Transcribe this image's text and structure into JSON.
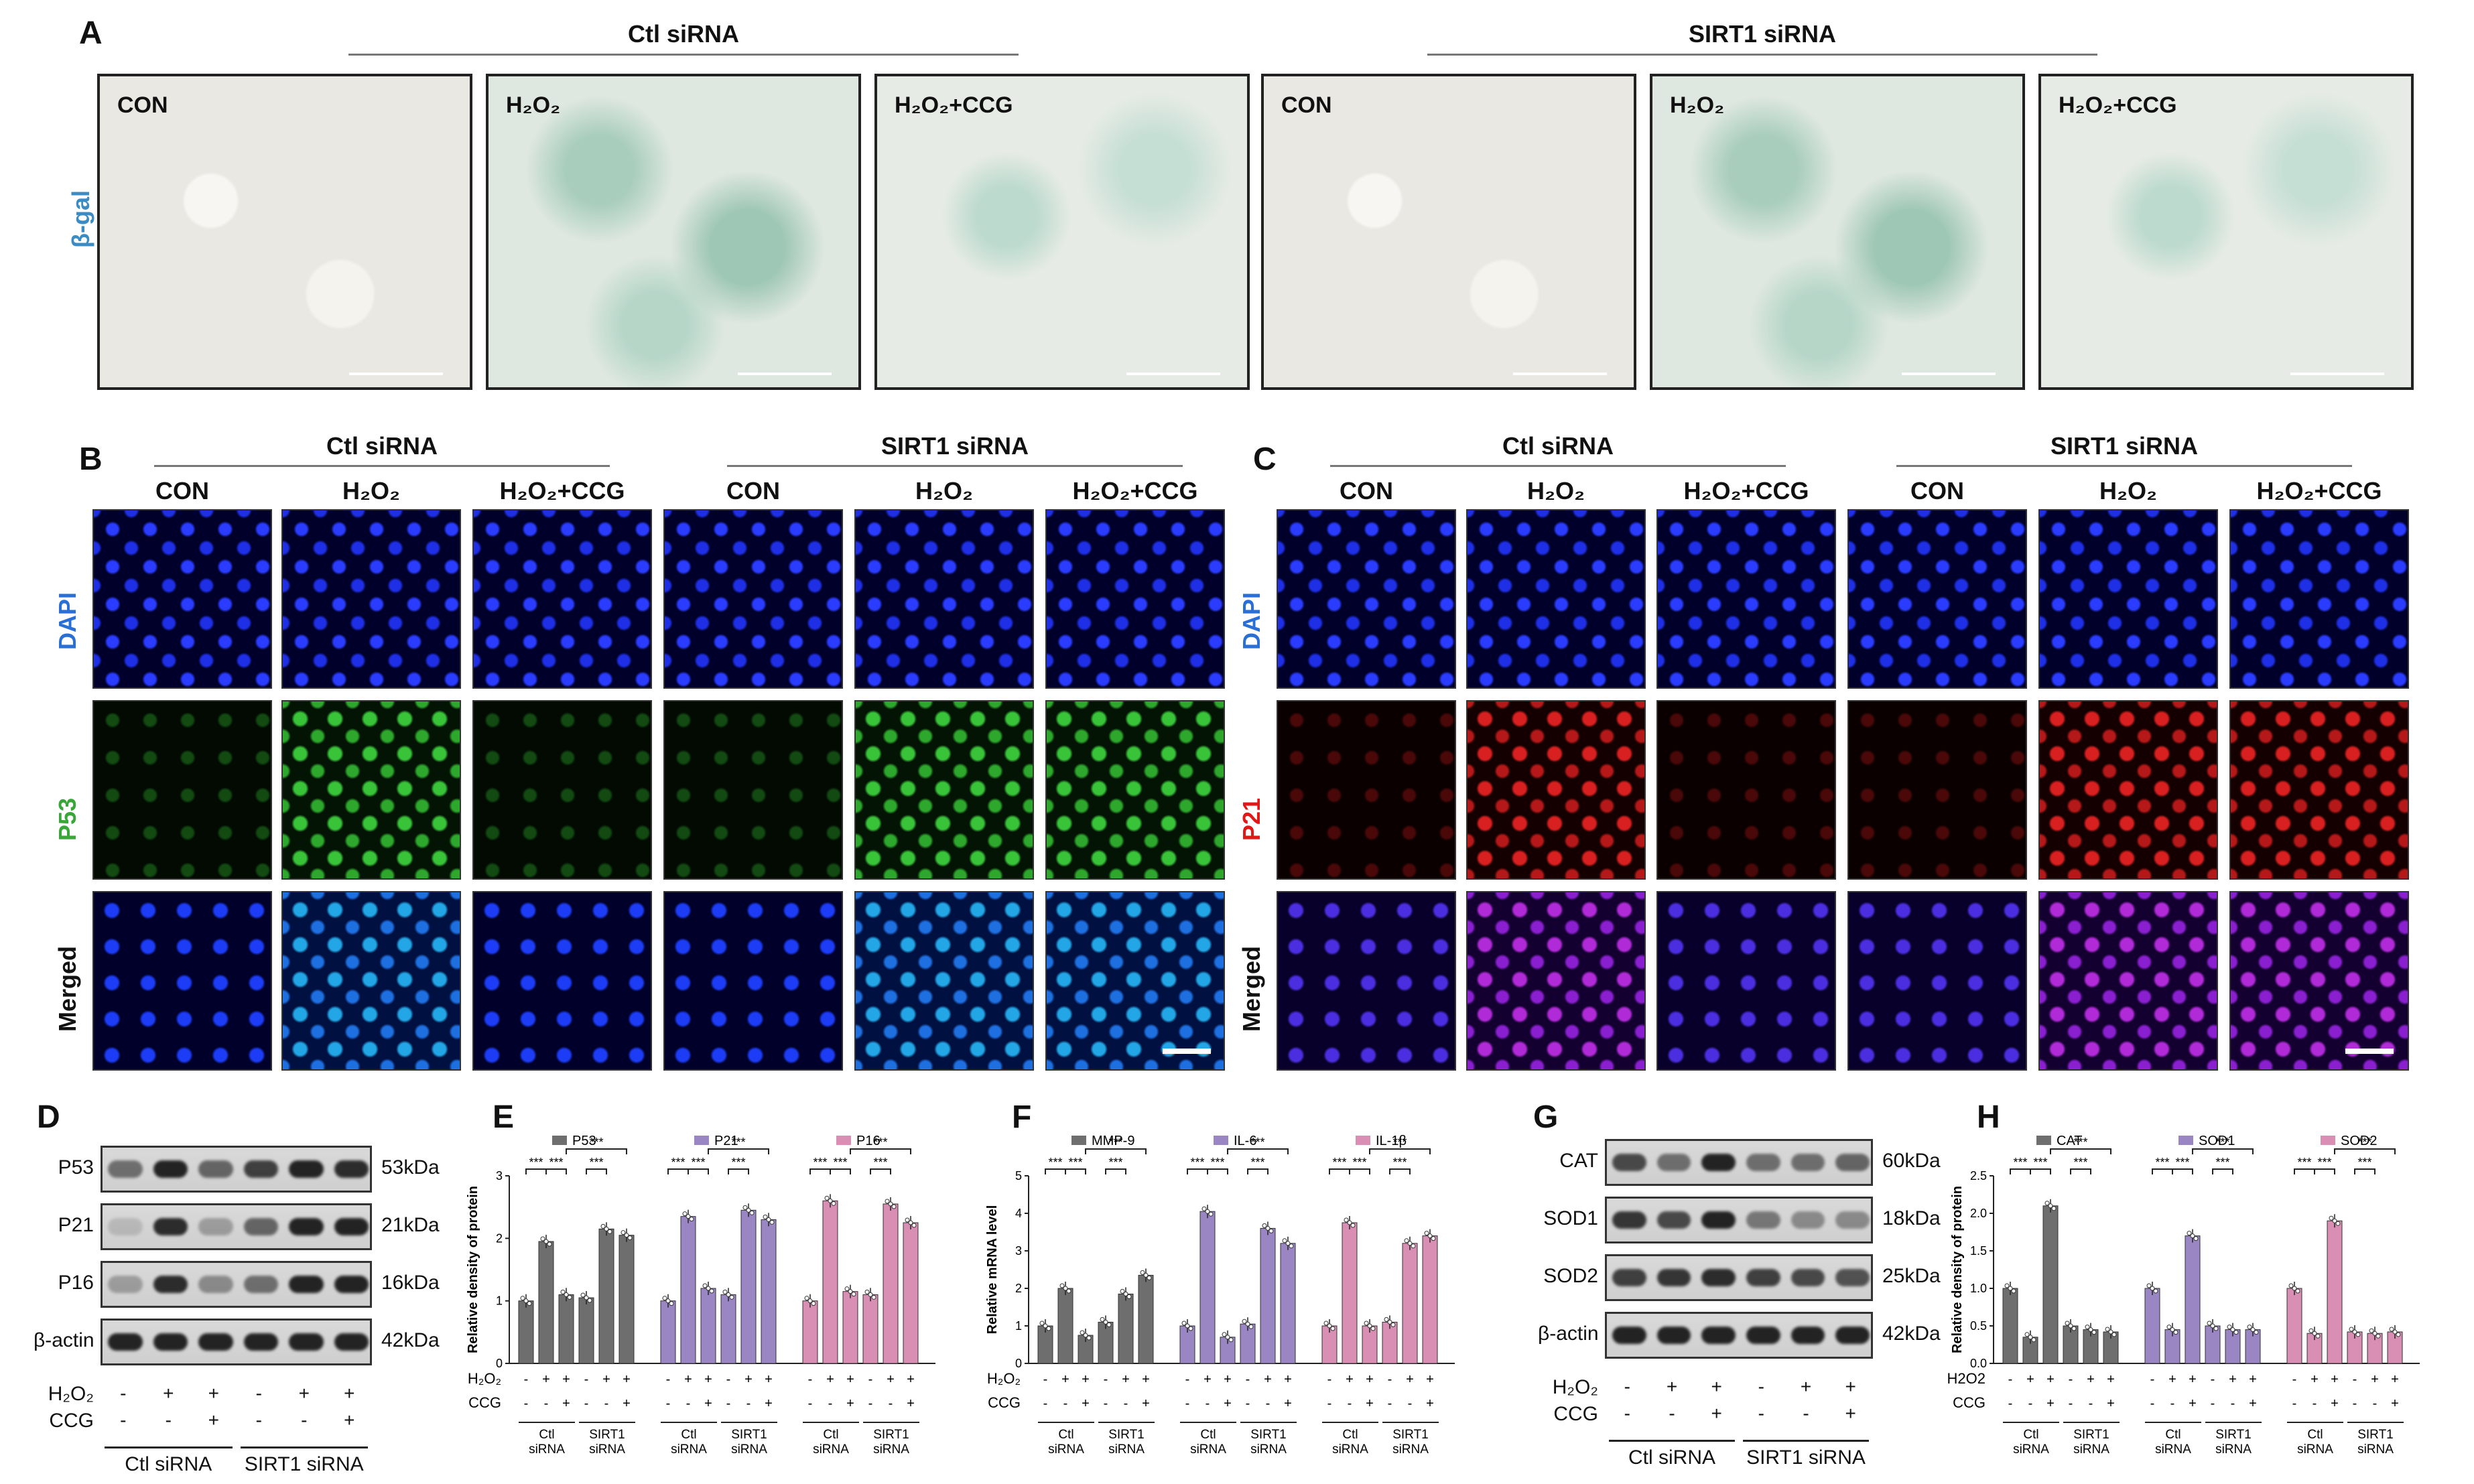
{
  "panels": {
    "A": {
      "label": "A",
      "groups": [
        "Ctl siRNA",
        "SIRT1 siRNA"
      ],
      "row_label": "β-gal",
      "conditions": [
        "CON",
        "H₂O₂",
        "H₂O₂+CCG",
        "CON",
        "H₂O₂",
        "H₂O₂+CCG"
      ]
    },
    "B": {
      "label": "B",
      "groups": [
        "Ctl siRNA",
        "SIRT1 siRNA"
      ],
      "conditions": [
        "CON",
        "H₂O₂",
        "H₂O₂+CCG",
        "CON",
        "H₂O₂",
        "H₂O₂+CCG"
      ],
      "rows": [
        "DAPI",
        "P53",
        "Merged"
      ]
    },
    "C": {
      "label": "C",
      "groups": [
        "Ctl siRNA",
        "SIRT1 siRNA"
      ],
      "conditions": [
        "CON",
        "H₂O₂",
        "H₂O₂+CCG",
        "CON",
        "H₂O₂",
        "H₂O₂+CCG"
      ],
      "rows": [
        "DAPI",
        "P21",
        "Merged"
      ]
    },
    "D": {
      "label": "D",
      "proteins": [
        "P53",
        "P21",
        "P16",
        "β-actin"
      ],
      "weights": [
        "53kDa",
        "21kDa",
        "16kDa",
        "42kDa"
      ],
      "treat_labels": [
        "H₂O₂",
        "CCG"
      ],
      "h2o2": [
        "-",
        "+",
        "+",
        "-",
        "+",
        "+"
      ],
      "ccg": [
        "-",
        "-",
        "+",
        "-",
        "-",
        "+"
      ],
      "groups": [
        "Ctl siRNA",
        "SIRT1 siRNA"
      ]
    },
    "G": {
      "label": "G",
      "proteins": [
        "CAT",
        "SOD1",
        "SOD2",
        "β-actin"
      ],
      "weights": [
        "60kDa",
        "18kDa",
        "25kDa",
        "42kDa"
      ],
      "treat_labels": [
        "H₂O₂",
        "CCG"
      ],
      "h2o2": [
        "-",
        "+",
        "+",
        "-",
        "+",
        "+"
      ],
      "ccg": [
        "-",
        "-",
        "+",
        "-",
        "-",
        "+"
      ],
      "groups": [
        "Ctl siRNA",
        "SIRT1 siRNA"
      ]
    }
  },
  "chart_data": [
    {
      "panel": "E",
      "type": "bar",
      "ylabel": "Relative density of protein",
      "ylim": [
        0,
        3
      ],
      "yticks": [
        "0",
        "1",
        "2",
        "3"
      ],
      "series": [
        {
          "name": "P53",
          "color": "#6e6e6e",
          "values": [
            1.0,
            1.95,
            1.1,
            1.05,
            2.15,
            2.05
          ]
        },
        {
          "name": "P21",
          "color": "#9b86c4",
          "values": [
            1.0,
            2.35,
            1.2,
            1.1,
            2.45,
            2.3
          ]
        },
        {
          "name": "P16",
          "color": "#d98fb4",
          "values": [
            1.0,
            2.6,
            1.15,
            1.1,
            2.55,
            2.25
          ]
        }
      ],
      "treat_labels": [
        "H₂O₂",
        "CCG"
      ],
      "h2o2": [
        "-",
        "+",
        "+",
        "-",
        "+",
        "+"
      ],
      "ccg": [
        "-",
        "-",
        "+",
        "-",
        "-",
        "+"
      ],
      "groups": [
        "Ctl siRNA",
        "SIRT1 siRNA"
      ]
    },
    {
      "panel": "F",
      "type": "bar",
      "ylabel": "Relative mRNA level",
      "ylim": [
        0,
        5
      ],
      "yticks": [
        "0",
        "1",
        "2",
        "3",
        "4",
        "5"
      ],
      "series": [
        {
          "name": "MMP-9",
          "color": "#6e6e6e",
          "values": [
            1.0,
            2.0,
            0.75,
            1.1,
            1.85,
            2.35
          ]
        },
        {
          "name": "IL-6",
          "color": "#9b86c4",
          "values": [
            1.0,
            4.05,
            0.7,
            1.05,
            3.6,
            3.2
          ]
        },
        {
          "name": "IL-1β",
          "color": "#d98fb4",
          "values": [
            1.0,
            3.75,
            1.0,
            1.1,
            3.2,
            3.4
          ]
        }
      ],
      "treat_labels": [
        "H₂O₂",
        "CCG"
      ],
      "h2o2": [
        "-",
        "+",
        "+",
        "-",
        "+",
        "+"
      ],
      "ccg": [
        "-",
        "-",
        "+",
        "-",
        "-",
        "+"
      ],
      "groups": [
        "Ctl siRNA",
        "SIRT1 siRNA"
      ]
    },
    {
      "panel": "H",
      "type": "bar",
      "ylabel": "Relative density of protein",
      "ylim": [
        0,
        2.5
      ],
      "yticks": [
        "0.0",
        "0.5",
        "1.0",
        "1.5",
        "2.0",
        "2.5"
      ],
      "series": [
        {
          "name": "CAT",
          "color": "#6e6e6e",
          "values": [
            1.0,
            0.35,
            2.1,
            0.5,
            0.45,
            0.42
          ]
        },
        {
          "name": "SOD1",
          "color": "#9b86c4",
          "values": [
            1.0,
            0.45,
            1.7,
            0.5,
            0.45,
            0.45
          ]
        },
        {
          "name": "SOD2",
          "color": "#d98fb4",
          "values": [
            1.0,
            0.4,
            1.9,
            0.42,
            0.4,
            0.42
          ]
        }
      ],
      "treat_labels": [
        "H2O2",
        "CCG"
      ],
      "h2o2": [
        "-",
        "+",
        "+",
        "-",
        "+",
        "+"
      ],
      "ccg": [
        "-",
        "-",
        "+",
        "-",
        "-",
        "+"
      ],
      "groups": [
        "Ctl siRNA",
        "SIRT1 siRNA"
      ]
    }
  ],
  "chart_panel_labels": [
    "E",
    "F",
    "H"
  ],
  "sig": {
    "one": "*",
    "three": "***"
  }
}
